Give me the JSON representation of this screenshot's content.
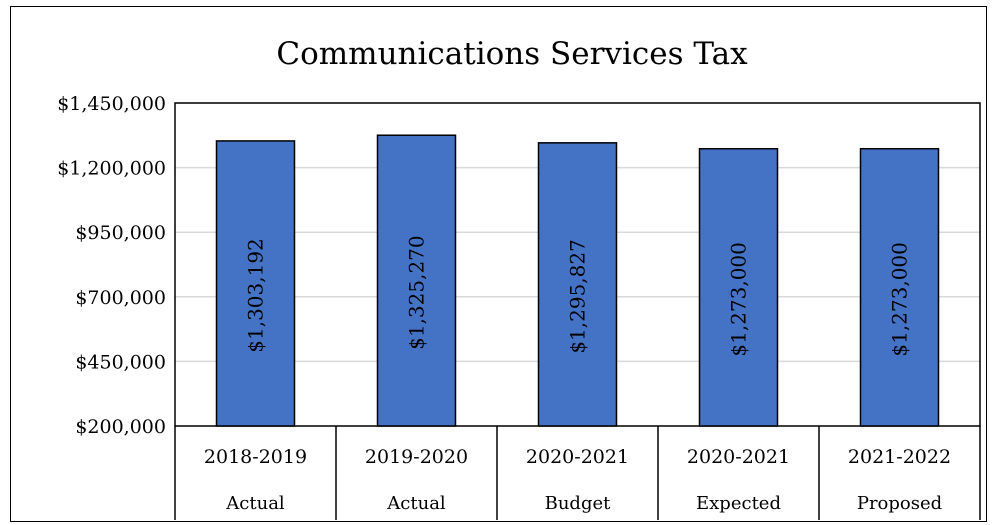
{
  "chart_data": {
    "type": "bar",
    "title": "Communications Services Tax",
    "xlabel": "",
    "ylabel": "",
    "categories": [
      "2018-2019",
      "2019-2020",
      "2020-2021",
      "2020-2021",
      "2021-2022"
    ],
    "subcategories": [
      "Actual",
      "Actual",
      "Budget",
      "Expected",
      "Proposed"
    ],
    "values": [
      1303192,
      1325270,
      1295827,
      1273000,
      1273000
    ],
    "data_labels": [
      "$1,303,192",
      "$1,325,270",
      "$1,295,827",
      "$1,273,000",
      "$1,273,000"
    ],
    "ylim": [
      200000,
      1450000
    ],
    "yticks": [
      200000,
      450000,
      700000,
      950000,
      1200000,
      1450000
    ],
    "ytick_labels": [
      "$200,000",
      "$450,000",
      "$700,000",
      "$950,000",
      "$1,200,000",
      "$1,450,000"
    ],
    "grid": true,
    "legend": "none",
    "colors": {
      "bar": "#4472C4",
      "bar_stroke": "#000000",
      "grid": "#d9d9d9"
    }
  }
}
